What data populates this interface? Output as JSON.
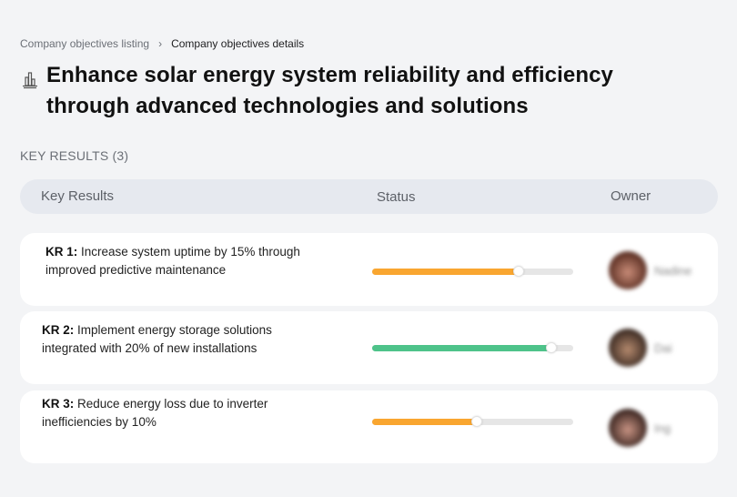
{
  "breadcrumb": {
    "items": [
      {
        "label": "Company objectives listing"
      },
      {
        "label": "Company objectives details"
      }
    ],
    "separator": "›"
  },
  "objective": {
    "icon": "building-chart-icon",
    "title": "Enhance solar energy system reliability and efficiency through advanced technologies and solutions"
  },
  "key_results_section": {
    "label": "KEY RESULTS (3)",
    "count": 3
  },
  "table": {
    "headers": {
      "key_results": "Key Results",
      "status": "Status",
      "owner": "Owner"
    },
    "rows": [
      {
        "kr_label": "KR 1:",
        "description": "Increase system uptime by 15% through improved predictive maintenance",
        "progress_percent": 73,
        "progress_color": "#f9a630",
        "owner_name": "Nadine",
        "avatar_colors": [
          "#5a2e22",
          "#c98c78"
        ]
      },
      {
        "kr_label": "KR 2:",
        "description": "Implement energy storage solutions integrated with 20% of new installations",
        "progress_percent": 89,
        "progress_color": "#4ec38a",
        "owner_name": "Dai",
        "avatar_colors": [
          "#3b2a22",
          "#b58a6e"
        ]
      },
      {
        "kr_label": "KR 3:",
        "description": "Reduce energy loss due to inverter inefficiencies by 10%",
        "progress_percent": 52,
        "progress_color": "#f9a630",
        "owner_name": "Ing",
        "avatar_colors": [
          "#3a2520",
          "#c99484"
        ]
      }
    ]
  },
  "colors": {
    "background": "#f3f4f6",
    "header_bg": "#e6e9ef",
    "card_bg": "#ffffff",
    "track": "#e6e6e6",
    "warning": "#f9a630",
    "success": "#4ec38a"
  }
}
